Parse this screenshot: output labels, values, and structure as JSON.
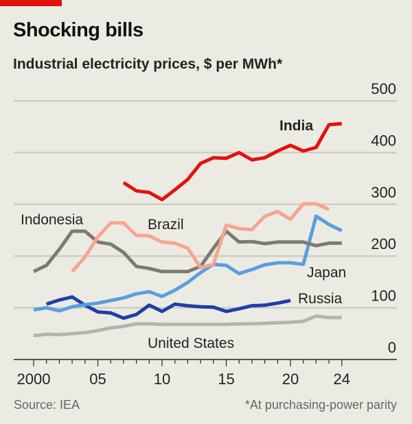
{
  "title": "Shocking bills",
  "subtitle": "Industrial electricity prices, $ per MWh*",
  "source": "Source: IEA",
  "footnote": "*At purchasing-power parity",
  "colors": {
    "background": "#ecebe3",
    "accent": "#e3120b"
  },
  "chart_data": {
    "type": "line",
    "title": "Shocking bills",
    "subtitle": "Industrial electricity prices, $ per MWh*",
    "ylim": [
      0,
      500
    ],
    "xlim": [
      2000,
      2024
    ],
    "y_ticks": [
      "0",
      "100",
      "200",
      "300",
      "400",
      "500"
    ],
    "x_ticks": [
      {
        "year": 2000,
        "label": "2000"
      },
      {
        "year": 2005,
        "label": "05"
      },
      {
        "year": 2010,
        "label": "10"
      },
      {
        "year": 2015,
        "label": "15"
      },
      {
        "year": 2020,
        "label": "20"
      },
      {
        "year": 2024,
        "label": "24"
      }
    ],
    "grid": true,
    "y_axis_side": "right",
    "series": [
      {
        "name": "India",
        "color": "#e3120b",
        "start": 2007,
        "values": [
          342,
          326,
          323,
          309,
          328,
          348,
          379,
          390,
          389,
          400,
          386,
          390,
          403,
          414,
          403,
          410,
          454,
          456
        ]
      },
      {
        "name": "Brazil",
        "color": "#f7a58e",
        "start": 2003,
        "values": [
          170,
          198,
          237,
          264,
          264,
          240,
          239,
          227,
          225,
          215,
          178,
          184,
          260,
          253,
          251,
          277,
          286,
          271,
          301,
          301,
          290
        ]
      },
      {
        "name": "Indonesia",
        "color": "#7b7b73",
        "start": 2000,
        "values": [
          170,
          182,
          213,
          248,
          248,
          227,
          223,
          207,
          180,
          176,
          170,
          170,
          170,
          180,
          215,
          248,
          227,
          228,
          224,
          227,
          227,
          227,
          220,
          225,
          225
        ]
      },
      {
        "name": "Japan",
        "color": "#5b9ee0",
        "start": 2000,
        "values": [
          96,
          100,
          94,
          102,
          106,
          109,
          114,
          119,
          127,
          131,
          122,
          134,
          149,
          168,
          184,
          182,
          166,
          174,
          183,
          187,
          187,
          184,
          277,
          261,
          249
        ]
      },
      {
        "name": "Russia",
        "color": "#1f3ea8",
        "start": 2001,
        "values": [
          107,
          115,
          121,
          105,
          92,
          90,
          80,
          87,
          105,
          93,
          107,
          104,
          102,
          101,
          93,
          98,
          104,
          105,
          109,
          114
        ]
      },
      {
        "name": "United States",
        "color": "#b4b4ac",
        "start": 2000,
        "values": [
          46,
          49,
          48,
          50,
          52,
          56,
          61,
          64,
          69,
          69,
          68,
          68,
          68,
          68,
          68,
          68,
          69,
          69,
          70,
          71,
          72,
          74,
          84,
          81,
          81
        ]
      }
    ]
  }
}
